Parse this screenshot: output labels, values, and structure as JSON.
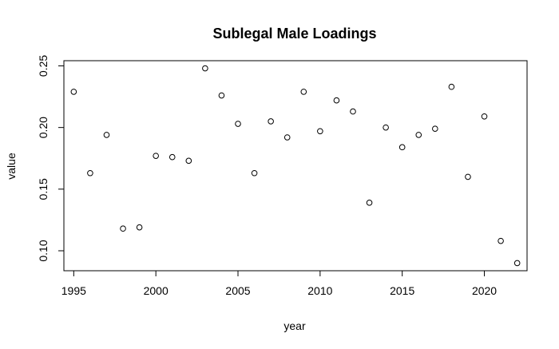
{
  "chart_data": {
    "type": "scatter",
    "title": "Sublegal Male Loadings",
    "xlabel": "year",
    "ylabel": "value",
    "xlim": [
      1994.4,
      2022.6
    ],
    "ylim": [
      0.0838,
      0.2542
    ],
    "x_ticks": [
      1995,
      2000,
      2005,
      2010,
      2015,
      2020
    ],
    "x_tick_labels": [
      "1995",
      "2000",
      "2005",
      "2010",
      "2015",
      "2020"
    ],
    "y_ticks": [
      0.1,
      0.15,
      0.2,
      0.25
    ],
    "y_tick_labels": [
      "0.10",
      "0.15",
      "0.20",
      "0.25"
    ],
    "grid": false,
    "legend": "none",
    "point_style": "open-circle",
    "x": [
      1995,
      1996,
      1997,
      1998,
      1999,
      2000,
      2001,
      2002,
      2003,
      2004,
      2005,
      2006,
      2007,
      2008,
      2009,
      2010,
      2011,
      2012,
      2013,
      2014,
      2015,
      2016,
      2017,
      2018,
      2019,
      2020,
      2021,
      2022
    ],
    "y": [
      0.229,
      0.163,
      0.194,
      0.118,
      0.119,
      0.177,
      0.176,
      0.173,
      0.248,
      0.226,
      0.203,
      0.163,
      0.205,
      0.192,
      0.229,
      0.197,
      0.222,
      0.213,
      0.139,
      0.2,
      0.184,
      0.194,
      0.199,
      0.233,
      0.16,
      0.209,
      0.108,
      0.09
    ]
  }
}
